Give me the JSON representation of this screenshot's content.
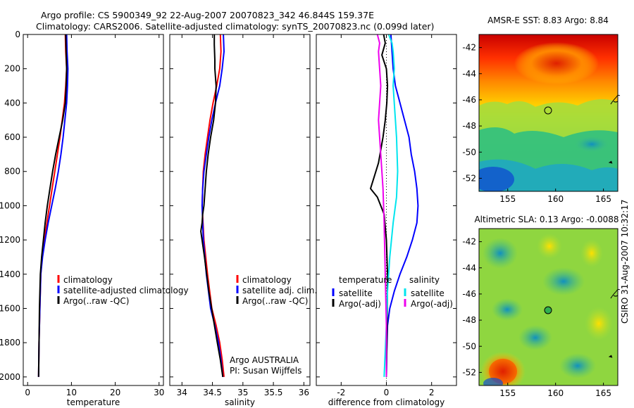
{
  "title_line1": "Argo profile: CS 5900349_92 22-Aug-2007 20070823_342 46.844S 159.37E",
  "title_line2": "Climatology: CARS2006. Satellite-adjusted climatology: synTS_20070823.nc (0.099d later)",
  "side_stamp": "CSIRO 31-Aug-2007 10:32:17",
  "colors": {
    "red": "#ff0000",
    "blue": "#0000ff",
    "black": "#000000",
    "cyan": "#00e5ee",
    "magenta": "#ee00ee"
  },
  "chart_data": [
    {
      "id": "temperature",
      "type": "line",
      "xlabel": "temperature",
      "xlim": [
        -1,
        31
      ],
      "ylim": [
        0,
        2050
      ],
      "y_reversed": true,
      "xticks": [
        0,
        10,
        20,
        30
      ],
      "yticks": [
        0,
        200,
        400,
        600,
        800,
        1000,
        1200,
        1400,
        1600,
        1800,
        2000
      ],
      "legend": [
        "climatology",
        "satellite-adjusted climatology",
        "Argo(..raw -QC)"
      ],
      "series": [
        {
          "name": "climatology",
          "color": "red",
          "width": 2,
          "x": [
            8.6,
            8.7,
            8.9,
            8.7,
            8.4,
            7.9,
            7.4,
            6.8,
            6.2,
            5.6,
            5.0,
            4.4,
            3.8,
            3.3,
            3.0,
            2.8,
            2.6,
            2.5
          ],
          "y": [
            0,
            100,
            200,
            300,
            400,
            500,
            600,
            700,
            800,
            900,
            1000,
            1100,
            1200,
            1300,
            1400,
            1600,
            1800,
            2000
          ]
        },
        {
          "name": "satellite-adjusted climatology",
          "color": "blue",
          "width": 2,
          "x": [
            8.9,
            9.0,
            9.2,
            9.1,
            8.9,
            8.5,
            8.1,
            7.6,
            7.0,
            6.3,
            5.5,
            4.7,
            4.0,
            3.4,
            3.0,
            2.8,
            2.6,
            2.5
          ],
          "y": [
            0,
            100,
            200,
            300,
            400,
            500,
            600,
            700,
            800,
            900,
            1000,
            1100,
            1200,
            1300,
            1400,
            1600,
            1800,
            2000
          ]
        },
        {
          "name": "Argo(..raw -QC)",
          "color": "black",
          "width": 2,
          "x": [
            8.7,
            8.8,
            8.9,
            8.8,
            8.6,
            8.0,
            7.2,
            6.4,
            5.7,
            5.1,
            4.5,
            4.0,
            3.6,
            3.2,
            2.9,
            2.7,
            2.6,
            2.5
          ],
          "y": [
            0,
            100,
            200,
            300,
            400,
            500,
            600,
            700,
            800,
            900,
            1000,
            1100,
            1200,
            1300,
            1400,
            1600,
            1800,
            2000
          ]
        }
      ]
    },
    {
      "id": "salinity",
      "type": "line",
      "xlabel": "salinity",
      "xlim": [
        33.8,
        36.1
      ],
      "ylim": [
        0,
        2050
      ],
      "y_reversed": true,
      "xticks": [
        34,
        34.5,
        35,
        35.5,
        36
      ],
      "legend": [
        "climatology",
        "satellite adj. clim.",
        "Argo(..raw -QC)"
      ],
      "annotation": [
        "Argo AUSTRALIA",
        "PI: Susan Wijffels"
      ],
      "series": [
        {
          "name": "climatology",
          "color": "red",
          "width": 2,
          "x": [
            34.63,
            34.64,
            34.62,
            34.57,
            34.51,
            34.46,
            34.42,
            34.38,
            34.35,
            34.34,
            34.33,
            34.36,
            34.42,
            34.49,
            34.56,
            34.62,
            34.66,
            34.69
          ],
          "y": [
            0,
            100,
            200,
            300,
            400,
            500,
            600,
            700,
            800,
            900,
            1000,
            1200,
            1400,
            1600,
            1700,
            1800,
            1900,
            2000
          ]
        },
        {
          "name": "satellite adj. clim.",
          "color": "blue",
          "width": 2,
          "x": [
            34.68,
            34.69,
            34.66,
            34.62,
            34.55,
            34.49,
            34.44,
            34.4,
            34.36,
            34.34,
            34.33,
            34.35,
            34.4,
            34.47,
            34.54,
            34.6,
            34.64,
            34.67
          ],
          "y": [
            0,
            100,
            200,
            300,
            400,
            500,
            600,
            700,
            800,
            900,
            1000,
            1200,
            1400,
            1600,
            1700,
            1800,
            1900,
            2000
          ]
        },
        {
          "name": "Argo(..raw -QC)",
          "color": "black",
          "width": 2,
          "x": [
            34.53,
            34.53,
            34.54,
            34.54,
            34.54,
            34.56,
            34.55,
            34.52,
            34.47,
            34.43,
            34.4,
            34.38,
            34.36,
            34.34,
            34.33,
            34.31,
            34.37,
            34.44,
            34.51,
            34.58,
            34.63,
            34.67
          ],
          "y": [
            0,
            60,
            150,
            170,
            200,
            300,
            400,
            500,
            600,
            700,
            800,
            900,
            1000,
            1050,
            1100,
            1150,
            1300,
            1500,
            1650,
            1800,
            1900,
            2000
          ]
        }
      ]
    },
    {
      "id": "difference",
      "type": "line",
      "xlabel": "difference from climatology",
      "xlim": [
        -3.1,
        3.1
      ],
      "ylim": [
        0,
        2050
      ],
      "y_reversed": true,
      "xticks": [
        -2,
        0,
        2
      ],
      "legend_left_heading": "temperature",
      "legend_left": [
        "satellite",
        "Argo(-adj)"
      ],
      "legend_right_heading": "salinity",
      "legend_right": [
        "satellite",
        "Argo(-adj)"
      ],
      "series": [
        {
          "name": "temperature satellite",
          "color": "blue",
          "width": 2,
          "x": [
            0.2,
            0.25,
            0.3,
            0.4,
            0.6,
            0.8,
            1.0,
            1.1,
            1.25,
            1.35,
            1.4,
            1.35,
            1.15,
            0.9,
            0.6,
            0.35,
            0.15,
            0.05,
            0.02,
            0.0
          ],
          "y": [
            0,
            100,
            200,
            300,
            400,
            500,
            600,
            700,
            800,
            900,
            1000,
            1100,
            1200,
            1300,
            1400,
            1500,
            1600,
            1700,
            1850,
            2000
          ]
        },
        {
          "name": "temperature Argo(-adj)",
          "color": "black",
          "width": 2,
          "x": [
            -0.12,
            -0.05,
            -0.2,
            0.0,
            0.05,
            0.02,
            -0.05,
            -0.15,
            -0.35,
            -0.7,
            -0.4,
            -0.1,
            0.0,
            0.05,
            0.03,
            0.0
          ],
          "y": [
            0,
            50,
            120,
            200,
            300,
            400,
            500,
            600,
            750,
            900,
            950,
            1050,
            1200,
            1400,
            1700,
            2000
          ]
        },
        {
          "name": "salinity satellite",
          "color": "cyan",
          "width": 2,
          "x": [
            0.1,
            0.25,
            0.3,
            0.35,
            0.3,
            0.35,
            0.4,
            0.45,
            0.5,
            0.45,
            0.3,
            0.15,
            0.05,
            0.0,
            -0.05,
            -0.1
          ],
          "y": [
            0,
            50,
            100,
            200,
            300,
            400,
            500,
            600,
            800,
            950,
            1100,
            1300,
            1500,
            1700,
            1850,
            2000
          ]
        },
        {
          "name": "salinity Argo(-adj)",
          "color": "magenta",
          "width": 2,
          "x": [
            -0.4,
            -0.3,
            -0.35,
            -0.3,
            -0.25,
            -0.3,
            -0.35,
            -0.3,
            -0.25,
            -0.2,
            -0.15,
            -0.1,
            -0.05,
            0.0,
            0.0
          ],
          "y": [
            0,
            50,
            100,
            200,
            300,
            400,
            500,
            600,
            700,
            800,
            900,
            1100,
            1400,
            1700,
            2000
          ]
        }
      ]
    },
    {
      "id": "sst_map",
      "type": "heatmap",
      "title": "AMSR-E SST: 8.83 Argo: 8.84",
      "xlim": [
        152,
        166.5
      ],
      "ylim": [
        -53,
        -41
      ],
      "xticks": [
        155,
        160,
        165
      ],
      "yticks": [
        -42,
        -44,
        -46,
        -48,
        -50,
        -52
      ],
      "profile_position": {
        "lon": 159.37,
        "lat": -46.844
      }
    },
    {
      "id": "sla_map",
      "type": "heatmap",
      "title": "Altimetric SLA: 0.13 Argo: -0.0088",
      "xlim": [
        152,
        166.5
      ],
      "ylim": [
        -53,
        -41
      ],
      "xticks": [
        155,
        160,
        165
      ],
      "yticks": [
        -42,
        -44,
        -46,
        -48,
        -50,
        -52
      ],
      "profile_position": {
        "lon": 159.37,
        "lat": -46.844
      }
    }
  ]
}
